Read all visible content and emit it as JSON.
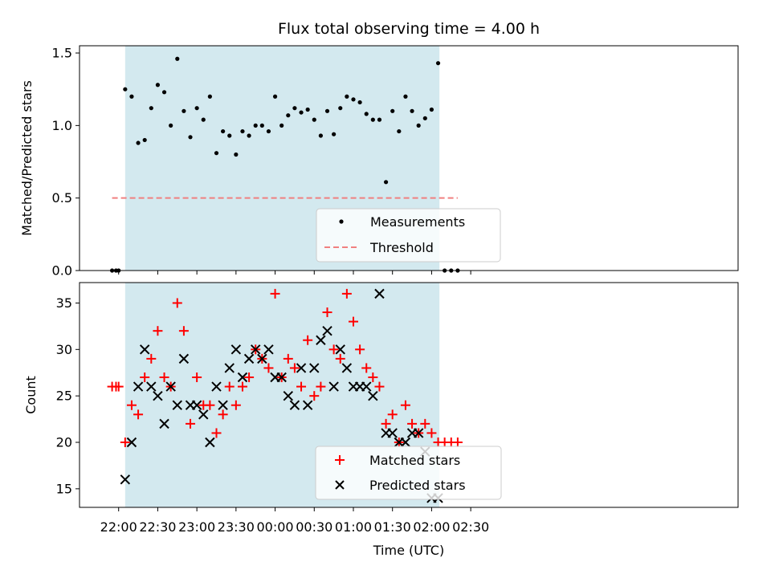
{
  "chart_data": [
    {
      "type": "scatter",
      "title": "Flux total observing time = 4.00 h",
      "xlabel": "",
      "ylabel": "Matched/Predicted stars",
      "ylim": [
        0,
        1.55
      ],
      "yticks": [
        0.0,
        0.5,
        1.0,
        1.5
      ],
      "ytick_labels": [
        "0.0",
        "0.5",
        "1.0",
        "1.5"
      ],
      "x_unit": "minutes after 22:00 UTC",
      "xlim": [
        -30,
        475
      ],
      "shaded_interval": [
        "22:05",
        "02:06"
      ],
      "shade_color": "#d3e9ef",
      "series": [
        {
          "name": "Measurements",
          "marker": "dot",
          "color": "#000000",
          "x": [
            "21:55",
            "21:58",
            "22:00",
            "22:05",
            "22:10",
            "22:15",
            "22:20",
            "22:25",
            "22:30",
            "22:35",
            "22:40",
            "22:45",
            "22:50",
            "22:55",
            "23:00",
            "23:05",
            "23:10",
            "23:15",
            "23:20",
            "23:25",
            "23:30",
            "23:35",
            "23:40",
            "23:45",
            "23:50",
            "23:55",
            "00:00",
            "00:05",
            "00:10",
            "00:15",
            "00:20",
            "00:25",
            "00:30",
            "00:35",
            "00:40",
            "00:45",
            "00:50",
            "00:55",
            "01:00",
            "01:05",
            "01:10",
            "01:15",
            "01:20",
            "01:25",
            "01:30",
            "01:35",
            "01:40",
            "01:45",
            "01:50",
            "01:55",
            "02:00",
            "02:05",
            "02:10",
            "02:15",
            "02:20"
          ],
          "y": [
            0.0,
            0.0,
            0.0,
            1.25,
            1.2,
            0.88,
            0.9,
            1.12,
            1.28,
            1.23,
            1.0,
            1.46,
            1.1,
            0.92,
            1.12,
            1.04,
            1.2,
            0.81,
            0.96,
            0.93,
            0.8,
            0.96,
            0.93,
            1.0,
            1.0,
            0.96,
            1.2,
            1.0,
            1.07,
            1.12,
            1.09,
            1.11,
            1.04,
            0.93,
            1.1,
            0.94,
            1.12,
            1.2,
            1.18,
            1.16,
            1.08,
            1.04,
            1.04,
            0.61,
            1.1,
            0.96,
            1.2,
            1.1,
            1.0,
            1.05,
            1.11,
            1.43,
            0.0,
            0.0,
            0.0
          ]
        },
        {
          "name": "Threshold",
          "style": "dashed",
          "color": "#f08080",
          "x": [
            "21:55",
            "02:20"
          ],
          "y": [
            0.5,
            0.5
          ]
        }
      ],
      "legend": {
        "position": "lower-center",
        "entries": [
          "Measurements",
          "Threshold"
        ]
      }
    },
    {
      "type": "scatter",
      "title": "",
      "xlabel": "Time (UTC)",
      "ylabel": "Count",
      "ylim": [
        13,
        37.2
      ],
      "yticks": [
        15,
        20,
        25,
        30,
        35
      ],
      "ytick_labels": [
        "15",
        "20",
        "25",
        "30",
        "35"
      ],
      "x_unit": "minutes after 22:00 UTC",
      "xlim": [
        -30,
        475
      ],
      "xticks": [
        0,
        30,
        60,
        90,
        120,
        150,
        180,
        210,
        240,
        270
      ],
      "xtick_labels": [
        "22:00",
        "22:30",
        "23:00",
        "23:30",
        "00:00",
        "00:30",
        "01:00",
        "01:30",
        "02:00",
        "02:30"
      ],
      "shaded_interval": [
        "22:05",
        "02:06"
      ],
      "shade_color": "#d3e9ef",
      "series": [
        {
          "name": "Matched stars",
          "marker": "plus",
          "color": "#ff0000",
          "x": [
            "21:55",
            "21:58",
            "22:00",
            "22:05",
            "22:10",
            "22:15",
            "22:20",
            "22:25",
            "22:30",
            "22:35",
            "22:40",
            "22:45",
            "22:50",
            "22:55",
            "23:00",
            "23:05",
            "23:10",
            "23:15",
            "23:20",
            "23:25",
            "23:30",
            "23:35",
            "23:40",
            "23:45",
            "23:50",
            "23:55",
            "00:00",
            "00:05",
            "00:10",
            "00:15",
            "00:20",
            "00:25",
            "00:30",
            "00:35",
            "00:40",
            "00:45",
            "00:50",
            "00:55",
            "01:00",
            "01:05",
            "01:10",
            "01:15",
            "01:20",
            "01:25",
            "01:30",
            "01:35",
            "01:40",
            "01:45",
            "01:50",
            "01:55",
            "02:00",
            "02:05",
            "02:10",
            "02:15",
            "02:20"
          ],
          "y": [
            26,
            26,
            26,
            20,
            24,
            23,
            27,
            29,
            32,
            27,
            26,
            35,
            32,
            22,
            27,
            24,
            24,
            21,
            23,
            26,
            24,
            26,
            27,
            30,
            29,
            28,
            36,
            27,
            29,
            28,
            26,
            31,
            25,
            26,
            34,
            30,
            29,
            36,
            33,
            30,
            28,
            27,
            26,
            22,
            23,
            20,
            24,
            22,
            21,
            22,
            21,
            20,
            20,
            20,
            20
          ]
        },
        {
          "name": "Predicted stars",
          "marker": "x",
          "color": "#000000",
          "x": [
            "22:05",
            "22:10",
            "22:15",
            "22:20",
            "22:25",
            "22:30",
            "22:35",
            "22:40",
            "22:45",
            "22:50",
            "22:55",
            "23:00",
            "23:05",
            "23:10",
            "23:15",
            "23:20",
            "23:25",
            "23:30",
            "23:35",
            "23:40",
            "23:45",
            "23:50",
            "23:55",
            "00:00",
            "00:05",
            "00:10",
            "00:15",
            "00:20",
            "00:25",
            "00:30",
            "00:35",
            "00:40",
            "00:45",
            "00:50",
            "00:55",
            "01:00",
            "01:05",
            "01:10",
            "01:15",
            "01:20",
            "01:25",
            "01:30",
            "01:35",
            "01:40",
            "01:45",
            "01:50",
            "01:55",
            "02:00",
            "02:05"
          ],
          "y": [
            16,
            20,
            26,
            30,
            26,
            25,
            22,
            26,
            24,
            29,
            24,
            24,
            23,
            20,
            26,
            24,
            28,
            30,
            27,
            29,
            30,
            29,
            30,
            27,
            27,
            25,
            24,
            28,
            24,
            28,
            31,
            32,
            26,
            30,
            28,
            26,
            26,
            26,
            25,
            36,
            21,
            21,
            20,
            20,
            21,
            21,
            19,
            14,
            14
          ]
        }
      ],
      "legend": {
        "position": "lower-center",
        "entries": [
          "Matched stars",
          "Predicted stars"
        ]
      }
    }
  ]
}
